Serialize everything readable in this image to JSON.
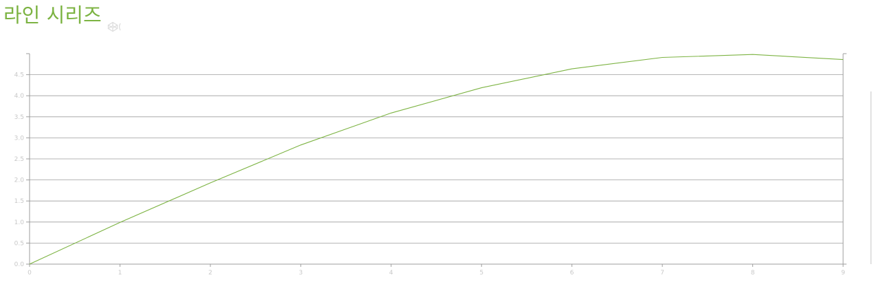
{
  "header": {
    "title": "라인 시리즈",
    "icon": "codepen-icon"
  },
  "colors": {
    "accent": "#7cb342",
    "grid": "#9e9e9e",
    "tick_text": "#c8c8c8"
  },
  "chart_data": {
    "type": "line",
    "x": [
      0,
      1,
      2,
      3,
      4,
      5,
      6,
      7,
      8,
      9
    ],
    "series": [
      {
        "values": [
          0.0,
          0.99,
          1.93,
          2.83,
          3.59,
          4.19,
          4.64,
          4.91,
          4.98,
          4.86
        ],
        "color": "#7cb342"
      }
    ],
    "xticks": [
      "0",
      "1",
      "2",
      "3",
      "4",
      "5",
      "6",
      "7",
      "8",
      "9"
    ],
    "yticks": [
      "0.0",
      "0.5",
      "1.0",
      "1.5",
      "2.0",
      "2.5",
      "3.0",
      "3.5",
      "4.0",
      "4.5"
    ],
    "xlim": [
      0,
      9
    ],
    "ylim": [
      0,
      5
    ],
    "grid": true,
    "xlabel": "",
    "ylabel": ""
  }
}
